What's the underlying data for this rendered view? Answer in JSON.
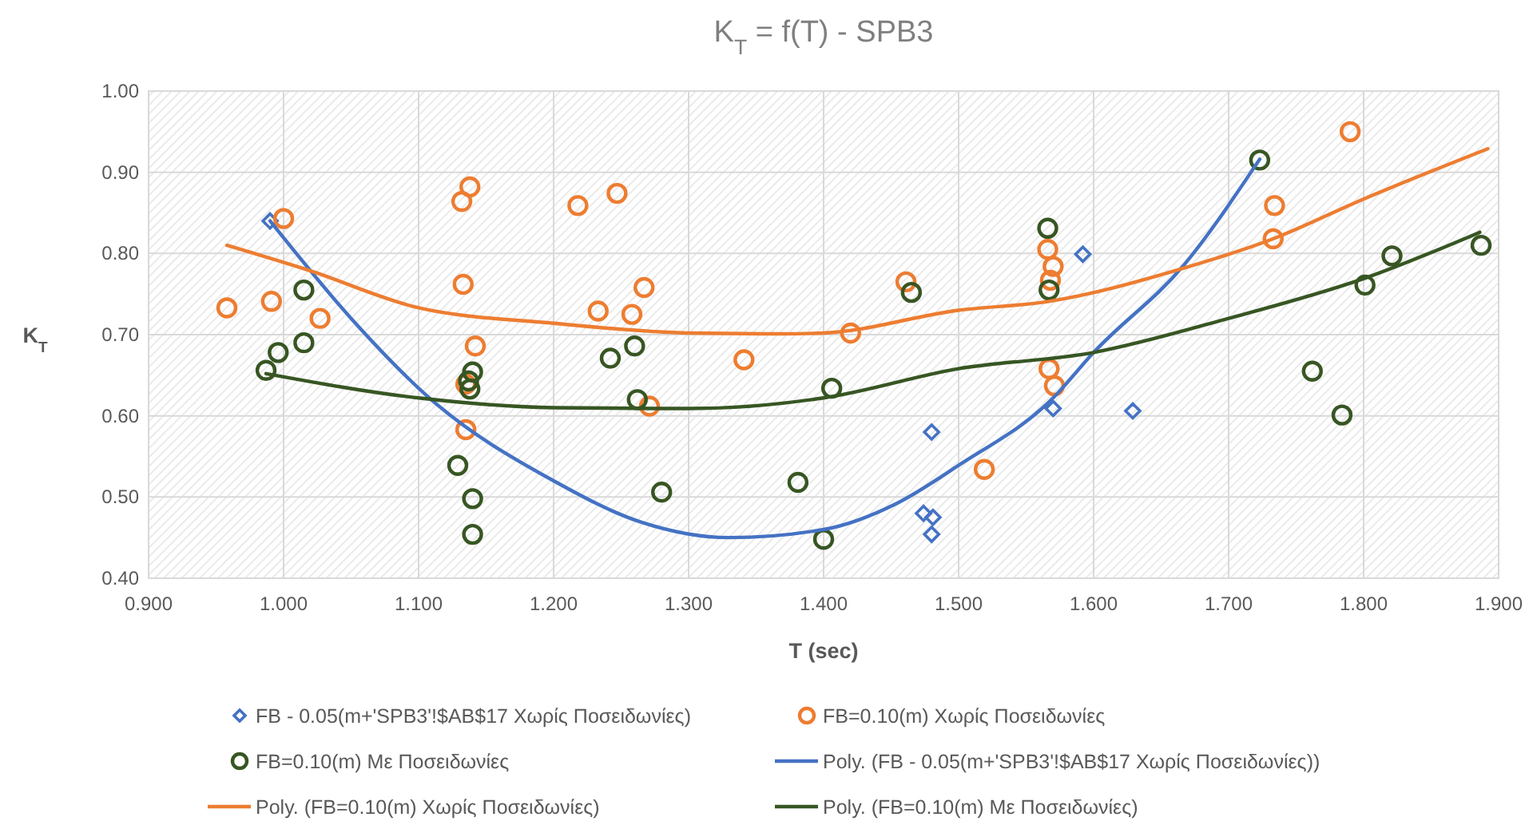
{
  "chart_data": {
    "type": "scatter",
    "title": "K$_{T}$ = f(T) - SPB3",
    "xlabel": "T (sec)",
    "ylabel": "K$_{T}$",
    "xlim": [
      0.9,
      1.9
    ],
    "xticks": [
      {
        "value": 0.9,
        "label": "0.900"
      },
      {
        "value": 1.0,
        "label": "1.000"
      },
      {
        "value": 1.1,
        "label": "1.100"
      },
      {
        "value": 1.2,
        "label": "1.200"
      },
      {
        "value": 1.3,
        "label": "1.300"
      },
      {
        "value": 1.4,
        "label": "1.400"
      },
      {
        "value": 1.5,
        "label": "1.500"
      },
      {
        "value": 1.6,
        "label": "1.600"
      },
      {
        "value": 1.7,
        "label": "1.700"
      },
      {
        "value": 1.8,
        "label": "1.800"
      },
      {
        "value": 1.9,
        "label": "1.900"
      }
    ],
    "ylim": [
      0.4,
      1.0
    ],
    "yticks": [
      {
        "value": 0.4,
        "label": "0.40"
      },
      {
        "value": 0.5,
        "label": "0.50"
      },
      {
        "value": 0.6,
        "label": "0.60"
      },
      {
        "value": 0.7,
        "label": "0.70"
      },
      {
        "value": 0.8,
        "label": "0.80"
      },
      {
        "value": 0.9,
        "label": "0.90"
      },
      {
        "value": 1.0,
        "label": "1.00"
      }
    ],
    "grid": true,
    "legend": "bottom",
    "series": [
      {
        "name": "FB - 0.05(m+'SPB3'!$AB$17 Χωρίς Ποσειδωνίες)",
        "marker": "diamond",
        "color": "#4472c4",
        "x": [
          0.99,
          1.474,
          1.48,
          1.481,
          1.48,
          1.57,
          1.592,
          1.629
        ],
        "values": [
          0.84,
          0.48,
          0.58,
          0.475,
          0.454,
          0.609,
          0.799,
          0.606
        ]
      },
      {
        "name": "FB=0.10(m) Χωρίς Ποσειδωνίες",
        "marker": "circle",
        "color": "#ed7d31",
        "x": [
          0.958,
          0.991,
          1.0,
          1.027,
          1.132,
          1.138,
          1.133,
          1.142,
          1.135,
          1.135,
          1.218,
          1.247,
          1.233,
          1.258,
          1.267,
          1.271,
          1.341,
          1.42,
          1.461,
          1.566,
          1.57,
          1.568,
          1.567,
          1.571,
          1.519,
          1.79,
          1.734,
          1.733
        ],
        "values": [
          0.733,
          0.741,
          0.843,
          0.72,
          0.864,
          0.882,
          0.762,
          0.686,
          0.639,
          0.583,
          0.859,
          0.874,
          0.729,
          0.725,
          0.758,
          0.612,
          0.669,
          0.702,
          0.765,
          0.805,
          0.784,
          0.767,
          0.658,
          0.637,
          0.534,
          0.95,
          0.859,
          0.818
        ]
      },
      {
        "name": "FB=0.10(m) Με Ποσειδωνίες",
        "marker": "circle",
        "color": "#375623",
        "x": [
          0.987,
          0.996,
          1.015,
          1.015,
          1.129,
          1.137,
          1.138,
          1.14,
          1.14,
          1.14,
          1.242,
          1.26,
          1.262,
          1.28,
          1.381,
          1.4,
          1.406,
          1.465,
          1.566,
          1.567,
          1.723,
          1.762,
          1.784,
          1.801,
          1.821,
          1.887
        ],
        "values": [
          0.656,
          0.678,
          0.755,
          0.69,
          0.539,
          0.643,
          0.633,
          0.654,
          0.498,
          0.454,
          0.671,
          0.686,
          0.62,
          0.506,
          0.518,
          0.448,
          0.634,
          0.752,
          0.831,
          0.755,
          0.915,
          0.655,
          0.601,
          0.761,
          0.797,
          0.81
        ]
      },
      {
        "name": "Poly. (FB - 0.05(m+'SPB3'!$AB$17 Χωρίς Ποσειδωνίες))",
        "type": "line",
        "marker": "none",
        "color": "#4472c4",
        "x": [
          0.99,
          1.05,
          1.108,
          1.2,
          1.265,
          1.33,
          1.4,
          1.454,
          1.5,
          1.57,
          1.6,
          1.667,
          1.723
        ],
        "values": [
          0.84,
          0.72,
          0.622,
          0.52,
          0.469,
          0.45,
          0.46,
          0.492,
          0.539,
          0.622,
          0.678,
          0.786,
          0.916
        ]
      },
      {
        "name": "Poly. (FB=0.10(m) Χωρίς Ποσειδωνίες)",
        "type": "line",
        "marker": "none",
        "color": "#ed7d31",
        "x": [
          0.958,
          1.019,
          1.1,
          1.2,
          1.3,
          1.37,
          1.4,
          1.5,
          1.567,
          1.667,
          1.733,
          1.8,
          1.892
        ],
        "values": [
          0.81,
          0.779,
          0.733,
          0.714,
          0.702,
          0.701,
          0.702,
          0.73,
          0.741,
          0.782,
          0.818,
          0.867,
          0.929
        ]
      },
      {
        "name": "Poly. (FB=0.10(m) Με Ποσειδωνίες)",
        "type": "line",
        "marker": "none",
        "color": "#375623",
        "x": [
          0.987,
          1.1,
          1.2,
          1.3,
          1.4,
          1.5,
          1.6,
          1.7,
          1.8,
          1.886
        ],
        "values": [
          0.652,
          0.622,
          0.61,
          0.609,
          0.622,
          0.658,
          0.678,
          0.72,
          0.769,
          0.826
        ]
      }
    ]
  }
}
